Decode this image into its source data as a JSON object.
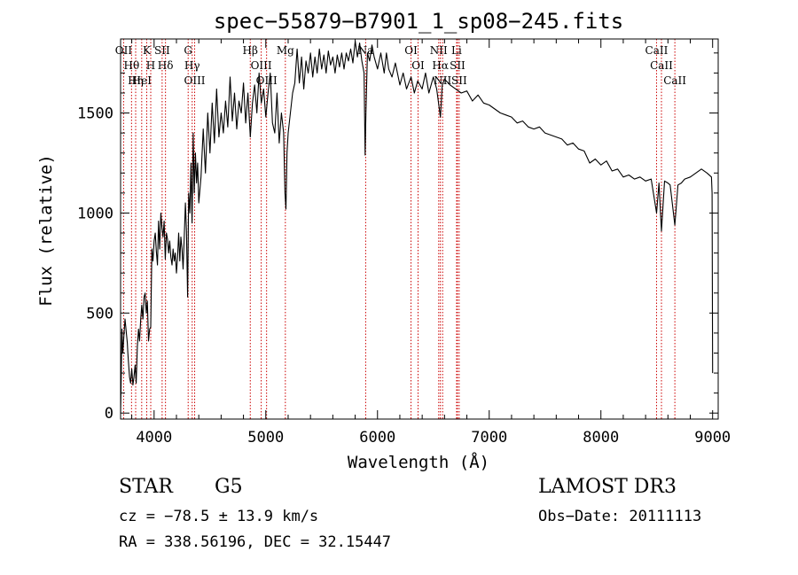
{
  "chart_data": {
    "type": "line",
    "title": "spec−55879−B7901_1_sp08−245.fits",
    "xlabel": "Wavelength (Å)",
    "ylabel": "Flux (relative)",
    "xlim": [
      3700,
      9050
    ],
    "ylim": [
      -30,
      1870
    ],
    "xticks": [
      4000,
      5000,
      6000,
      7000,
      8000,
      9000
    ],
    "yticks": [
      0,
      500,
      1000,
      1500
    ],
    "grid": false,
    "series": [
      {
        "name": "flux",
        "points": [
          [
            3700,
            0
          ],
          [
            3705,
            150
          ],
          [
            3712,
            420
          ],
          [
            3720,
            300
          ],
          [
            3730,
            390
          ],
          [
            3740,
            470
          ],
          [
            3750,
            410
          ],
          [
            3760,
            350
          ],
          [
            3765,
            300
          ],
          [
            3770,
            260
          ],
          [
            3780,
            180
          ],
          [
            3790,
            150
          ],
          [
            3800,
            220
          ],
          [
            3810,
            140
          ],
          [
            3820,
            180
          ],
          [
            3830,
            240
          ],
          [
            3840,
            150
          ],
          [
            3850,
            330
          ],
          [
            3860,
            420
          ],
          [
            3870,
            360
          ],
          [
            3880,
            470
          ],
          [
            3890,
            540
          ],
          [
            3900,
            470
          ],
          [
            3910,
            580
          ],
          [
            3920,
            600
          ],
          [
            3930,
            500
          ],
          [
            3940,
            560
          ],
          [
            3950,
            360
          ],
          [
            3960,
            420
          ],
          [
            3970,
            430
          ],
          [
            3980,
            820
          ],
          [
            3990,
            760
          ],
          [
            4000,
            860
          ],
          [
            4010,
            900
          ],
          [
            4020,
            810
          ],
          [
            4030,
            740
          ],
          [
            4040,
            960
          ],
          [
            4050,
            820
          ],
          [
            4060,
            1000
          ],
          [
            4070,
            930
          ],
          [
            4080,
            880
          ],
          [
            4090,
            960
          ],
          [
            4100,
            770
          ],
          [
            4110,
            900
          ],
          [
            4120,
            870
          ],
          [
            4130,
            800
          ],
          [
            4140,
            860
          ],
          [
            4150,
            780
          ],
          [
            4160,
            740
          ],
          [
            4170,
            820
          ],
          [
            4180,
            760
          ],
          [
            4190,
            800
          ],
          [
            4200,
            700
          ],
          [
            4210,
            780
          ],
          [
            4220,
            900
          ],
          [
            4230,
            760
          ],
          [
            4240,
            880
          ],
          [
            4250,
            820
          ],
          [
            4260,
            720
          ],
          [
            4270,
            880
          ],
          [
            4280,
            1050
          ],
          [
            4290,
            910
          ],
          [
            4300,
            580
          ],
          [
            4310,
            1100
          ],
          [
            4320,
            1000
          ],
          [
            4330,
            1250
          ],
          [
            4340,
            950
          ],
          [
            4350,
            1400
          ],
          [
            4360,
            1100
          ],
          [
            4370,
            1300
          ],
          [
            4380,
            1150
          ],
          [
            4390,
            1250
          ],
          [
            4400,
            1050
          ],
          [
            4420,
            1180
          ],
          [
            4440,
            1420
          ],
          [
            4460,
            1200
          ],
          [
            4480,
            1500
          ],
          [
            4500,
            1300
          ],
          [
            4520,
            1550
          ],
          [
            4540,
            1350
          ],
          [
            4560,
            1620
          ],
          [
            4580,
            1380
          ],
          [
            4600,
            1500
          ],
          [
            4620,
            1400
          ],
          [
            4640,
            1560
          ],
          [
            4660,
            1430
          ],
          [
            4680,
            1680
          ],
          [
            4700,
            1460
          ],
          [
            4720,
            1600
          ],
          [
            4740,
            1420
          ],
          [
            4760,
            1560
          ],
          [
            4780,
            1500
          ],
          [
            4800,
            1650
          ],
          [
            4820,
            1450
          ],
          [
            4840,
            1600
          ],
          [
            4861,
            1380
          ],
          [
            4880,
            1550
          ],
          [
            4900,
            1640
          ],
          [
            4920,
            1500
          ],
          [
            4940,
            1700
          ],
          [
            4960,
            1550
          ],
          [
            4980,
            1620
          ],
          [
            5000,
            1480
          ],
          [
            5020,
            1600
          ],
          [
            5040,
            1700
          ],
          [
            5060,
            1450
          ],
          [
            5080,
            1400
          ],
          [
            5100,
            1600
          ],
          [
            5120,
            1350
          ],
          [
            5140,
            1500
          ],
          [
            5160,
            1400
          ],
          [
            5172,
            1100
          ],
          [
            5180,
            1020
          ],
          [
            5190,
            1300
          ],
          [
            5200,
            1400
          ],
          [
            5220,
            1500
          ],
          [
            5240,
            1600
          ],
          [
            5260,
            1650
          ],
          [
            5280,
            1820
          ],
          [
            5300,
            1650
          ],
          [
            5320,
            1780
          ],
          [
            5340,
            1620
          ],
          [
            5360,
            1760
          ],
          [
            5380,
            1700
          ],
          [
            5400,
            1800
          ],
          [
            5420,
            1680
          ],
          [
            5440,
            1780
          ],
          [
            5460,
            1700
          ],
          [
            5480,
            1820
          ],
          [
            5500,
            1720
          ],
          [
            5520,
            1790
          ],
          [
            5540,
            1700
          ],
          [
            5560,
            1810
          ],
          [
            5580,
            1740
          ],
          [
            5600,
            1780
          ],
          [
            5620,
            1700
          ],
          [
            5640,
            1790
          ],
          [
            5660,
            1730
          ],
          [
            5680,
            1800
          ],
          [
            5700,
            1720
          ],
          [
            5720,
            1800
          ],
          [
            5740,
            1760
          ],
          [
            5760,
            1820
          ],
          [
            5780,
            1750
          ],
          [
            5800,
            1860
          ],
          [
            5820,
            1780
          ],
          [
            5840,
            1850
          ],
          [
            5860,
            1760
          ],
          [
            5880,
            1700
          ],
          [
            5889,
            1290
          ],
          [
            5896,
            1500
          ],
          [
            5910,
            1800
          ],
          [
            5930,
            1760
          ],
          [
            5950,
            1840
          ],
          [
            5970,
            1780
          ],
          [
            6000,
            1720
          ],
          [
            6030,
            1800
          ],
          [
            6060,
            1700
          ],
          [
            6080,
            1800
          ],
          [
            6100,
            1720
          ],
          [
            6130,
            1680
          ],
          [
            6160,
            1750
          ],
          [
            6200,
            1640
          ],
          [
            6230,
            1700
          ],
          [
            6260,
            1620
          ],
          [
            6300,
            1680
          ],
          [
            6330,
            1600
          ],
          [
            6360,
            1660
          ],
          [
            6400,
            1620
          ],
          [
            6430,
            1700
          ],
          [
            6460,
            1600
          ],
          [
            6500,
            1680
          ],
          [
            6530,
            1620
          ],
          [
            6563,
            1480
          ],
          [
            6580,
            1640
          ],
          [
            6600,
            1670
          ],
          [
            6650,
            1640
          ],
          [
            6700,
            1620
          ],
          [
            6750,
            1600
          ],
          [
            6800,
            1610
          ],
          [
            6850,
            1560
          ],
          [
            6900,
            1590
          ],
          [
            6950,
            1550
          ],
          [
            7000,
            1540
          ],
          [
            7050,
            1520
          ],
          [
            7100,
            1500
          ],
          [
            7150,
            1490
          ],
          [
            7200,
            1480
          ],
          [
            7250,
            1450
          ],
          [
            7300,
            1460
          ],
          [
            7350,
            1430
          ],
          [
            7400,
            1420
          ],
          [
            7450,
            1430
          ],
          [
            7500,
            1400
          ],
          [
            7550,
            1390
          ],
          [
            7600,
            1380
          ],
          [
            7650,
            1370
          ],
          [
            7700,
            1340
          ],
          [
            7750,
            1350
          ],
          [
            7800,
            1320
          ],
          [
            7850,
            1310
          ],
          [
            7900,
            1250
          ],
          [
            7950,
            1270
          ],
          [
            8000,
            1240
          ],
          [
            8050,
            1260
          ],
          [
            8100,
            1210
          ],
          [
            8150,
            1220
          ],
          [
            8200,
            1180
          ],
          [
            8250,
            1190
          ],
          [
            8300,
            1170
          ],
          [
            8350,
            1180
          ],
          [
            8400,
            1160
          ],
          [
            8450,
            1170
          ],
          [
            8498,
            1000
          ],
          [
            8520,
            1150
          ],
          [
            8542,
            910
          ],
          [
            8570,
            1160
          ],
          [
            8600,
            1150
          ],
          [
            8620,
            1140
          ],
          [
            8662,
            940
          ],
          [
            8690,
            1140
          ],
          [
            8720,
            1150
          ],
          [
            8750,
            1170
          ],
          [
            8800,
            1180
          ],
          [
            8850,
            1200
          ],
          [
            8900,
            1220
          ],
          [
            8950,
            1200
          ],
          [
            8990,
            1180
          ],
          [
            8995,
            1100
          ],
          [
            9000,
            200
          ]
        ]
      }
    ],
    "lines": [
      {
        "name": "Hθ",
        "wavelength": 3798
      },
      {
        "name": "OII",
        "wavelength": 3727
      },
      {
        "name": "Hη",
        "wavelength": 3835
      },
      {
        "name": "K",
        "wavelength": 3934
      },
      {
        "name": "HeI",
        "wavelength": 3889
      },
      {
        "name": "H",
        "wavelength": 3970
      },
      {
        "name": "Hδ",
        "wavelength": 4102
      },
      {
        "name": "SII",
        "wavelength": 4072
      },
      {
        "name": "OIII",
        "wavelength": 4363
      },
      {
        "name": "Hγ",
        "wavelength": 4341
      },
      {
        "name": "G",
        "wavelength": 4305
      },
      {
        "name": "Hβ",
        "wavelength": 4861
      },
      {
        "name": "OIII",
        "wavelength": 5007
      },
      {
        "name": "OIII",
        "wavelength": 4959
      },
      {
        "name": "Mg",
        "wavelength": 5175
      },
      {
        "name": "Na",
        "wavelength": 5894
      },
      {
        "name": "OI",
        "wavelength": 6300
      },
      {
        "name": "OI",
        "wavelength": 6363
      },
      {
        "name": "Hα",
        "wavelength": 6563
      },
      {
        "name": "NII",
        "wavelength": 6548
      },
      {
        "name": "NII",
        "wavelength": 6583
      },
      {
        "name": "SII",
        "wavelength": 6716
      },
      {
        "name": "Li",
        "wavelength": 6708
      },
      {
        "name": "SII",
        "wavelength": 6731
      },
      {
        "name": "CaII",
        "wavelength": 8498
      },
      {
        "name": "CaII",
        "wavelength": 8542
      },
      {
        "name": "CaII",
        "wavelength": 8662
      }
    ],
    "line_color": "#cc0000"
  },
  "info": {
    "class": "STAR",
    "subclass": "G5",
    "survey": "LAMOST DR3",
    "cz": "cz = −78.5 ± 13.9 km/s",
    "obs_date": "Obs−Date: 20111113",
    "coords": "RA = 338.56196, DEC =  32.15447"
  }
}
